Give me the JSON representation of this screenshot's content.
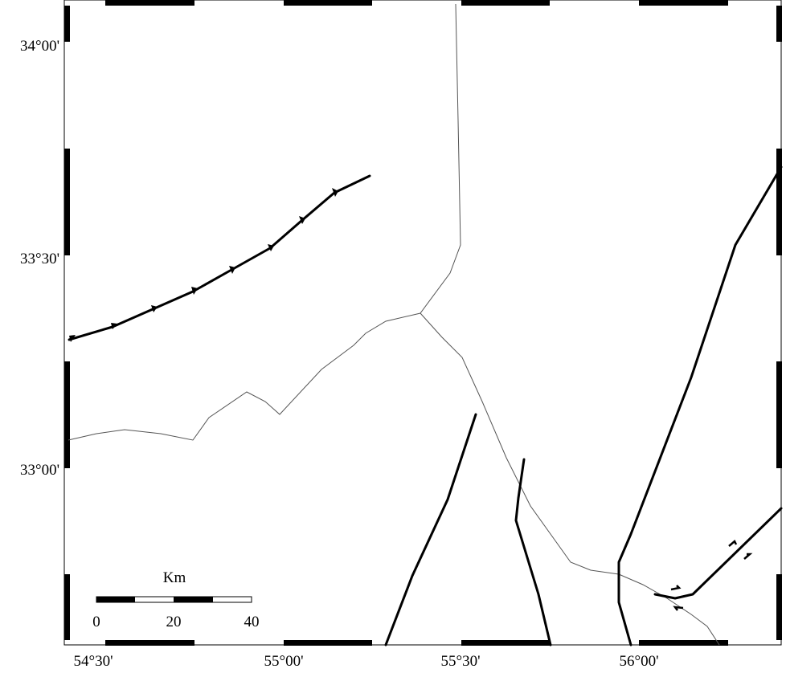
{
  "map": {
    "longitude_labels": [
      "54°30'",
      "55°00'",
      "55°30'",
      "56°00'"
    ],
    "latitude_labels": [
      "34°00'",
      "33°30'",
      "33°00'"
    ],
    "scale_bar": {
      "unit": "Km",
      "labels": [
        "0",
        "20",
        "40"
      ]
    }
  }
}
